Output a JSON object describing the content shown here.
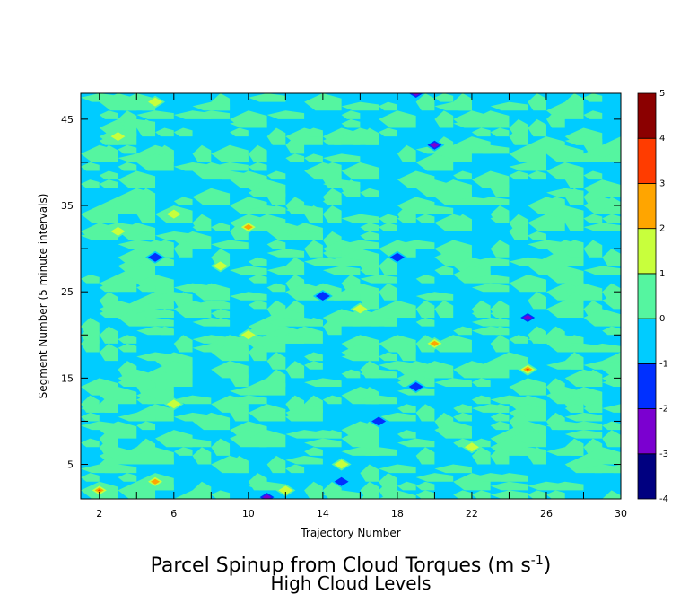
{
  "chart_data": {
    "type": "heatmap",
    "title_main": "Parcel Spinup from Cloud Torques (m s",
    "title_units_exp": "-1",
    "title_close": ")",
    "subtitle": "High Cloud Levels",
    "xlabel": "Trajectory Number",
    "ylabel": "Segment Number (5 minute intervals)",
    "xlim": [
      1,
      30
    ],
    "ylim": [
      1,
      48
    ],
    "x_ticks": [
      2,
      6,
      10,
      14,
      18,
      22,
      26,
      30
    ],
    "y_ticks": [
      5,
      15,
      25,
      35,
      45
    ],
    "colorbar": {
      "levels": [
        -4,
        -3,
        -2,
        -1,
        0,
        1,
        2,
        3,
        4,
        5
      ],
      "colors": [
        "#000080",
        "#7b00d0",
        "#0030ff",
        "#00ccff",
        "#55f5a0",
        "#c8ff3c",
        "#ffa500",
        "#ff3c00",
        "#8b0000"
      ],
      "labels": [
        "-4",
        "-3",
        "-2",
        "-1",
        "0",
        "1",
        "2",
        "3",
        "4",
        "5"
      ]
    },
    "background_value": 0,
    "features": [
      {
        "x": 2,
        "y": 2,
        "value": 3.5
      },
      {
        "x": 5,
        "y": 3,
        "value": 2.5
      },
      {
        "x": 11,
        "y": 1.2,
        "value": -3
      },
      {
        "x": 15,
        "y": 3,
        "value": -2
      },
      {
        "x": 10,
        "y": 32.5,
        "value": 3
      },
      {
        "x": 8.5,
        "y": 28,
        "value": 1.5
      },
      {
        "x": 3,
        "y": 32,
        "value": 1.5
      },
      {
        "x": 6,
        "y": 34,
        "value": 1.5
      },
      {
        "x": 5,
        "y": 29,
        "value": -2
      },
      {
        "x": 14,
        "y": 24.5,
        "value": -2
      },
      {
        "x": 18,
        "y": 29,
        "value": -2
      },
      {
        "x": 20,
        "y": 42,
        "value": -2.5
      },
      {
        "x": 19,
        "y": 48,
        "value": -2.5
      },
      {
        "x": 25,
        "y": 22,
        "value": -2.5
      },
      {
        "x": 25,
        "y": 16,
        "value": 3.5
      },
      {
        "x": 20,
        "y": 19,
        "value": 2.5
      },
      {
        "x": 10,
        "y": 20,
        "value": 1.5
      },
      {
        "x": 17,
        "y": 10,
        "value": -2
      },
      {
        "x": 22,
        "y": 7,
        "value": 1.5
      },
      {
        "x": 16,
        "y": 23,
        "value": 1.5
      },
      {
        "x": 19,
        "y": 14,
        "value": -2
      },
      {
        "x": 6,
        "y": 12,
        "value": 1.5
      },
      {
        "x": 3,
        "y": 43,
        "value": 1.5
      },
      {
        "x": 5,
        "y": 47,
        "value": 1.5
      },
      {
        "x": 15,
        "y": 5,
        "value": 1.5
      },
      {
        "x": 12,
        "y": 2,
        "value": 1.5
      }
    ]
  }
}
